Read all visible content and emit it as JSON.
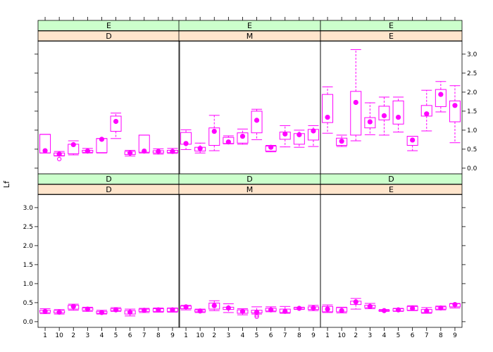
{
  "chart_data": {
    "type": "boxplot",
    "ylabel": "Lf",
    "ylim": [
      -0.15,
      3.35
    ],
    "yticks": [
      0.0,
      0.5,
      1.0,
      1.5,
      2.0,
      2.5,
      3.0
    ],
    "ytick_labels": [
      "0.0",
      "0.5",
      "1.0",
      "1.5",
      "2.0",
      "2.5",
      "3.0"
    ],
    "categories": [
      "1",
      "10",
      "2",
      "3",
      "4",
      "5",
      "6",
      "7",
      "8",
      "9"
    ],
    "color": "#ff00ff",
    "strip_colors": {
      "top": "#ccffcc",
      "bottom": "#ffe5cc"
    },
    "panels": [
      {
        "strip_top": "E",
        "strip_bottom": "D",
        "boxes": [
          {
            "lw": 0.4,
            "q1": 0.4,
            "med": 0.46,
            "q3": 0.89,
            "uw": 0.89,
            "out": []
          },
          {
            "lw": 0.32,
            "q1": 0.33,
            "med": 0.37,
            "q3": 0.4,
            "uw": 0.44,
            "out": [
              0.24
            ]
          },
          {
            "lw": 0.35,
            "q1": 0.38,
            "med": 0.62,
            "q3": 0.63,
            "uw": 0.72,
            "out": []
          },
          {
            "lw": 0.4,
            "q1": 0.42,
            "med": 0.45,
            "q3": 0.47,
            "uw": 0.52,
            "out": []
          },
          {
            "lw": 0.4,
            "q1": 0.41,
            "med": 0.76,
            "q3": 0.78,
            "uw": 0.78,
            "out": []
          },
          {
            "lw": 0.78,
            "q1": 0.97,
            "med": 1.23,
            "q3": 1.37,
            "uw": 1.45,
            "out": []
          },
          {
            "lw": 0.32,
            "q1": 0.36,
            "med": 0.4,
            "q3": 0.44,
            "uw": 0.47,
            "out": []
          },
          {
            "lw": 0.4,
            "q1": 0.42,
            "med": 0.45,
            "q3": 0.87,
            "uw": 0.87,
            "out": []
          },
          {
            "lw": 0.37,
            "q1": 0.4,
            "med": 0.44,
            "q3": 0.46,
            "uw": 0.51,
            "out": []
          },
          {
            "lw": 0.39,
            "q1": 0.41,
            "med": 0.44,
            "q3": 0.47,
            "uw": 0.52,
            "out": []
          }
        ]
      },
      {
        "strip_top": "E",
        "strip_bottom": "M",
        "boxes": [
          {
            "lw": 0.49,
            "q1": 0.63,
            "med": 0.65,
            "q3": 0.94,
            "uw": 1.01,
            "out": []
          },
          {
            "lw": 0.4,
            "q1": 0.45,
            "med": 0.52,
            "q3": 0.55,
            "uw": 0.66,
            "out": []
          },
          {
            "lw": 0.46,
            "q1": 0.6,
            "med": 0.97,
            "q3": 1.06,
            "uw": 1.39,
            "out": []
          },
          {
            "lw": 0.64,
            "q1": 0.65,
            "med": 0.69,
            "q3": 0.81,
            "uw": 0.85,
            "out": []
          },
          {
            "lw": 0.63,
            "q1": 0.66,
            "med": 0.84,
            "q3": 0.93,
            "uw": 1.03,
            "out": []
          },
          {
            "lw": 0.75,
            "q1": 0.93,
            "med": 1.26,
            "q3": 1.5,
            "uw": 1.55,
            "out": []
          },
          {
            "lw": 0.43,
            "q1": 0.45,
            "med": 0.55,
            "q3": 0.58,
            "uw": 0.6,
            "out": []
          },
          {
            "lw": 0.56,
            "q1": 0.76,
            "med": 0.9,
            "q3": 0.95,
            "uw": 1.12,
            "out": []
          },
          {
            "lw": 0.55,
            "q1": 0.63,
            "med": 0.88,
            "q3": 0.91,
            "uw": 1.0,
            "out": []
          },
          {
            "lw": 0.57,
            "q1": 0.74,
            "med": 0.98,
            "q3": 1.02,
            "uw": 1.12,
            "out": []
          }
        ]
      },
      {
        "strip_top": "E",
        "strip_bottom": "E",
        "boxes": [
          {
            "lw": 0.92,
            "q1": 1.2,
            "med": 1.34,
            "q3": 1.94,
            "uw": 2.14,
            "out": []
          },
          {
            "lw": 0.57,
            "q1": 0.6,
            "med": 0.71,
            "q3": 0.79,
            "uw": 0.87,
            "out": []
          },
          {
            "lw": 0.72,
            "q1": 0.87,
            "med": 1.73,
            "q3": 2.02,
            "uw": 3.12,
            "out": []
          },
          {
            "lw": 0.88,
            "q1": 1.06,
            "med": 1.22,
            "q3": 1.33,
            "uw": 1.72,
            "out": []
          },
          {
            "lw": 0.87,
            "q1": 1.27,
            "med": 1.38,
            "q3": 1.63,
            "uw": 1.87,
            "out": []
          },
          {
            "lw": 0.95,
            "q1": 1.16,
            "med": 1.34,
            "q3": 1.77,
            "uw": 1.87,
            "out": []
          },
          {
            "lw": 0.46,
            "q1": 0.6,
            "med": 0.74,
            "q3": 0.84,
            "uw": 0.84,
            "out": []
          },
          {
            "lw": 0.98,
            "q1": 1.37,
            "med": 1.43,
            "q3": 1.65,
            "uw": 2.05,
            "out": []
          },
          {
            "lw": 1.48,
            "q1": 1.62,
            "med": 1.94,
            "q3": 2.07,
            "uw": 2.28,
            "out": []
          },
          {
            "lw": 0.67,
            "q1": 1.22,
            "med": 1.65,
            "q3": 1.77,
            "uw": 2.17,
            "out": []
          }
        ]
      },
      {
        "strip_top": "D",
        "strip_bottom": "D",
        "boxes": [
          {
            "lw": 0.21,
            "q1": 0.24,
            "med": 0.27,
            "q3": 0.3,
            "uw": 0.34,
            "out": []
          },
          {
            "lw": 0.2,
            "q1": 0.23,
            "med": 0.25,
            "q3": 0.29,
            "uw": 0.32,
            "out": []
          },
          {
            "lw": 0.3,
            "q1": 0.33,
            "med": 0.4,
            "q3": 0.43,
            "uw": 0.46,
            "out": []
          },
          {
            "lw": 0.27,
            "q1": 0.3,
            "med": 0.33,
            "q3": 0.36,
            "uw": 0.38,
            "out": []
          },
          {
            "lw": 0.2,
            "q1": 0.22,
            "med": 0.24,
            "q3": 0.27,
            "uw": 0.3,
            "out": []
          },
          {
            "lw": 0.27,
            "q1": 0.29,
            "med": 0.31,
            "q3": 0.34,
            "uw": 0.37,
            "out": []
          },
          {
            "lw": 0.15,
            "q1": 0.2,
            "med": 0.25,
            "q3": 0.29,
            "uw": 0.33,
            "out": []
          },
          {
            "lw": 0.24,
            "q1": 0.27,
            "med": 0.3,
            "q3": 0.33,
            "uw": 0.35,
            "out": []
          },
          {
            "lw": 0.25,
            "q1": 0.27,
            "med": 0.31,
            "q3": 0.34,
            "uw": 0.36,
            "out": []
          },
          {
            "lw": 0.25,
            "q1": 0.27,
            "med": 0.31,
            "q3": 0.35,
            "uw": 0.36,
            "out": []
          }
        ]
      },
      {
        "strip_top": "D",
        "strip_bottom": "M",
        "boxes": [
          {
            "lw": 0.31,
            "q1": 0.34,
            "med": 0.39,
            "q3": 0.41,
            "uw": 0.43,
            "out": []
          },
          {
            "lw": 0.24,
            "q1": 0.26,
            "med": 0.28,
            "q3": 0.31,
            "uw": 0.33,
            "out": []
          },
          {
            "lw": 0.29,
            "q1": 0.33,
            "med": 0.42,
            "q3": 0.49,
            "uw": 0.55,
            "out": []
          },
          {
            "lw": 0.24,
            "q1": 0.32,
            "med": 0.36,
            "q3": 0.38,
            "uw": 0.47,
            "out": []
          },
          {
            "lw": 0.18,
            "q1": 0.22,
            "med": 0.27,
            "q3": 0.31,
            "uw": 0.34,
            "out": []
          },
          {
            "lw": 0.2,
            "q1": 0.23,
            "med": 0.25,
            "q3": 0.3,
            "uw": 0.39,
            "out": [
              0.13,
              0.17
            ]
          },
          {
            "lw": 0.26,
            "q1": 0.28,
            "med": 0.31,
            "q3": 0.35,
            "uw": 0.39,
            "out": []
          },
          {
            "lw": 0.22,
            "q1": 0.24,
            "med": 0.27,
            "q3": 0.33,
            "uw": 0.4,
            "out": []
          },
          {
            "lw": 0.32,
            "q1": 0.33,
            "med": 0.35,
            "q3": 0.37,
            "uw": 0.38,
            "out": []
          },
          {
            "lw": 0.29,
            "q1": 0.32,
            "med": 0.36,
            "q3": 0.39,
            "uw": 0.43,
            "out": []
          }
        ]
      },
      {
        "strip_top": "D",
        "strip_bottom": "E",
        "boxes": [
          {
            "lw": 0.24,
            "q1": 0.26,
            "med": 0.33,
            "q3": 0.4,
            "uw": 0.44,
            "out": []
          },
          {
            "lw": 0.23,
            "q1": 0.26,
            "med": 0.29,
            "q3": 0.37,
            "uw": 0.38,
            "out": []
          },
          {
            "lw": 0.33,
            "q1": 0.45,
            "med": 0.52,
            "q3": 0.54,
            "uw": 0.61,
            "out": []
          },
          {
            "lw": 0.34,
            "q1": 0.37,
            "med": 0.4,
            "q3": 0.43,
            "uw": 0.48,
            "out": []
          },
          {
            "lw": 0.27,
            "q1": 0.28,
            "med": 0.29,
            "q3": 0.3,
            "uw": 0.32,
            "out": []
          },
          {
            "lw": 0.27,
            "q1": 0.28,
            "med": 0.31,
            "q3": 0.34,
            "uw": 0.35,
            "out": []
          },
          {
            "lw": 0.29,
            "q1": 0.3,
            "med": 0.35,
            "q3": 0.4,
            "uw": 0.42,
            "out": []
          },
          {
            "lw": 0.22,
            "q1": 0.24,
            "med": 0.28,
            "q3": 0.32,
            "uw": 0.37,
            "out": []
          },
          {
            "lw": 0.31,
            "q1": 0.33,
            "med": 0.36,
            "q3": 0.39,
            "uw": 0.41,
            "out": []
          },
          {
            "lw": 0.36,
            "q1": 0.39,
            "med": 0.45,
            "q3": 0.47,
            "uw": 0.48,
            "out": []
          }
        ]
      }
    ]
  }
}
